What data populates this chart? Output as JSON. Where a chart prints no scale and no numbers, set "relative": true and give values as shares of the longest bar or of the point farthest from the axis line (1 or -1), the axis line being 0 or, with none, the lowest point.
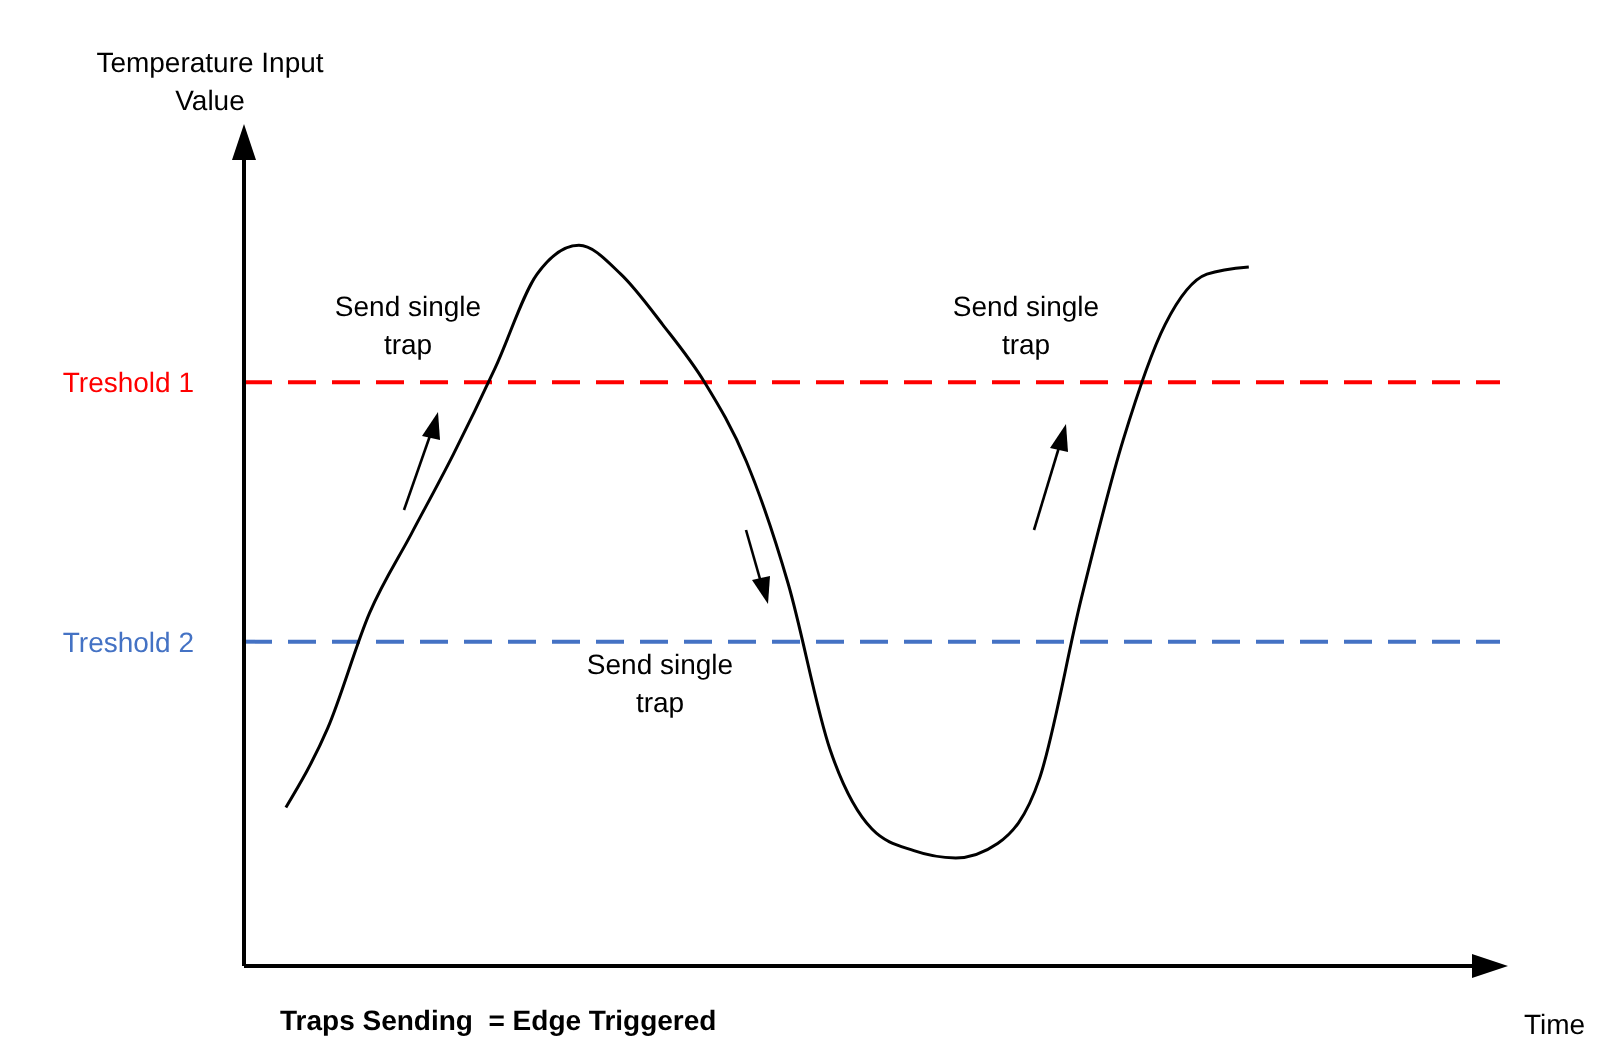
{
  "chart_data": {
    "type": "line",
    "relative": true,
    "ylabel": "Temperature Input Value",
    "xlabel": "Time",
    "categories": [
      null,
      null,
      null,
      null,
      null,
      null,
      null,
      null,
      null,
      null,
      null,
      null,
      null,
      null,
      null,
      null,
      null,
      null,
      null,
      null,
      null,
      null,
      null,
      null,
      null,
      null,
      null,
      null,
      null,
      null,
      null
    ],
    "series": [
      {
        "color": "#000000",
        "values": [
          null,
          0.22,
          0.33,
          0.49,
          0.6,
          0.71,
          0.83,
          0.96,
          1.0,
          0.96,
          0.89,
          0.81,
          0.7,
          0.53,
          0.3,
          0.19,
          0.16,
          0.15,
          0.17,
          0.26,
          0.51,
          0.73,
          0.89,
          0.96,
          0.97,
          null,
          null,
          null,
          null,
          null,
          null
        ]
      }
    ],
    "ref_lines": [
      {
        "axis": "y",
        "value": 0.81,
        "label": "Treshold 1",
        "color": "#ff0000",
        "line_style": "dashed"
      },
      {
        "axis": "y",
        "value": 0.45,
        "label": "Treshold 2",
        "color": "#4472c4",
        "line_style": "dashed"
      }
    ],
    "annotations": [
      "Send single trap",
      "Send single trap",
      "Send single trap",
      "Traps Sending  = Edge Triggered"
    ],
    "grid": false,
    "legend": false,
    "marker": "none",
    "line_style": "solid"
  }
}
